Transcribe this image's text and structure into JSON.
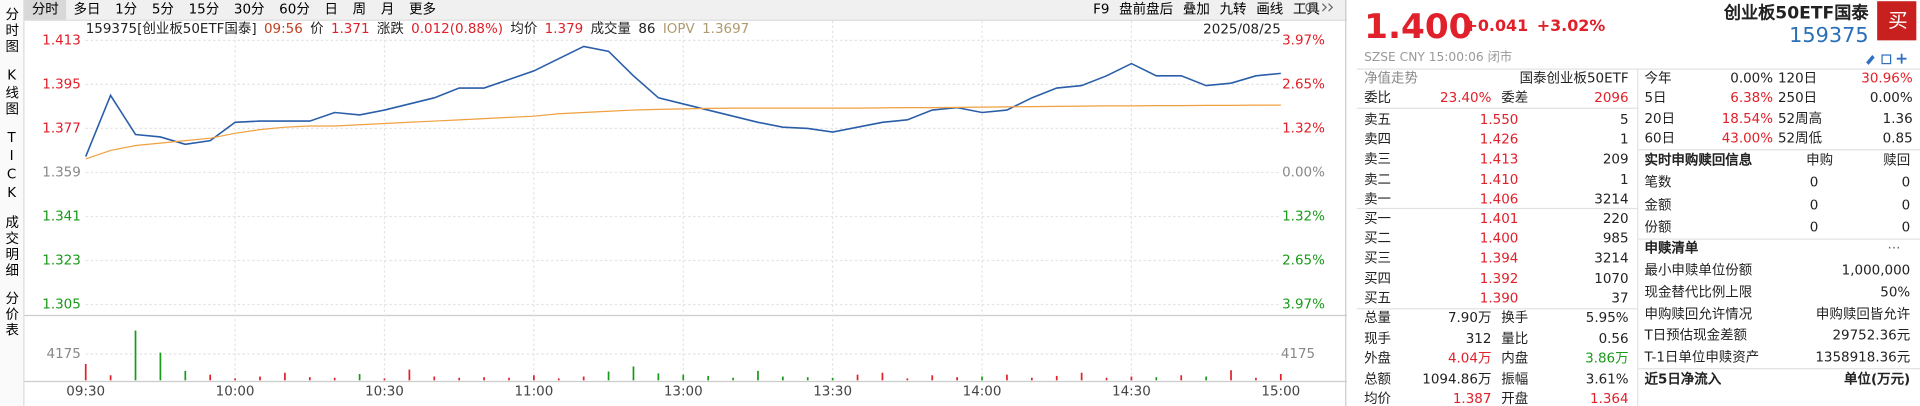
{
  "tabs": [
    "分时",
    "多日",
    "1分",
    "5分",
    "15分",
    "30分",
    "60分",
    "日",
    "周",
    "月",
    "更多"
  ],
  "tools": [
    "F9",
    "盘前盘后",
    "叠加",
    "九转",
    "画线",
    "工具"
  ],
  "nav": [
    "分时图",
    "K线图",
    "TICK",
    "成交明细",
    "分价表"
  ],
  "quote_line": [
    {
      "text": "159375[创业板50ETF国泰]",
      "color": "#222222"
    },
    {
      "text": "09:56",
      "color": "#c04020"
    },
    {
      "text": "价",
      "color": "#222222"
    },
    {
      "text": "1.371",
      "color": "#e0202a"
    },
    {
      "text": "涨跌",
      "color": "#222222"
    },
    {
      "text": "0.012(0.88%)",
      "color": "#e0202a"
    },
    {
      "text": "均价",
      "color": "#222222"
    },
    {
      "text": "1.379",
      "color": "#e0202a"
    },
    {
      "text": "成交量",
      "color": "#222222"
    },
    {
      "text": "86",
      "color": "#222222"
    },
    {
      "text": "IOPV",
      "color": "#b09a70"
    },
    {
      "text": "1.3697",
      "color": "#b09a70"
    }
  ],
  "date": "2025/08/25",
  "chart_data": {
    "type": "line",
    "series": [
      {
        "color": "#2a5ea8",
        "values": [
          1.3655,
          1.3905,
          1.3745,
          1.3735,
          1.3705,
          1.372,
          1.3795,
          1.38,
          1.38,
          1.38,
          1.3835,
          1.3825,
          1.3845,
          1.387,
          1.3895,
          1.3935,
          1.3935,
          1.397,
          1.4005,
          1.4055,
          1.4105,
          1.4085,
          1.3985,
          1.3895,
          1.387,
          1.3845,
          1.382,
          1.3795,
          1.3775,
          1.377,
          1.3755,
          1.3775,
          1.3795,
          1.3805,
          1.3845,
          1.3855,
          1.3835,
          1.3845,
          1.3895,
          1.3935,
          1.3945,
          1.3985,
          1.4035,
          1.3985,
          1.3985,
          1.3945,
          1.3955,
          1.3985,
          1.3995
        ]
      },
      {
        "color": "#f0a040",
        "values": [
          1.3645,
          1.368,
          1.37,
          1.371,
          1.372,
          1.373,
          1.375,
          1.3765,
          1.3775,
          1.378,
          1.378,
          1.3785,
          1.379,
          1.3795,
          1.38,
          1.3805,
          1.381,
          1.3815,
          1.382,
          1.383,
          1.3835,
          1.384,
          1.3845,
          1.3848,
          1.385,
          1.3852,
          1.3853,
          1.3853,
          1.3853,
          1.3853,
          1.3853,
          1.3853,
          1.3854,
          1.3855,
          1.3855,
          1.3856,
          1.3857,
          1.3858,
          1.3859,
          1.386,
          1.3861,
          1.3862,
          1.3862,
          1.3863,
          1.3863,
          1.3864,
          1.3864,
          1.3865,
          1.3865
        ]
      }
    ],
    "ylim": [
      1.305,
      1.413
    ],
    "yticks": [
      1.305,
      1.323,
      1.341,
      1.359,
      1.377,
      1.395,
      1.413
    ],
    "y2lim": [
      -3.97,
      3.97
    ],
    "y2ticks": [
      {
        "value": -3.97,
        "label": "3.97%"
      },
      {
        "value": -2.65,
        "label": "2.65%"
      },
      {
        "value": -1.32,
        "label": "1.32%"
      },
      {
        "value": 0,
        "label": "0.00%"
      },
      {
        "value": 1.32,
        "label": "1.32%"
      },
      {
        "value": 2.65,
        "label": "2.65%"
      },
      {
        "value": 3.97,
        "label": "3.97%"
      }
    ],
    "times": [
      "09:30",
      "10:00",
      "10:30",
      "11:00",
      "13:00",
      "13:30",
      "14:00",
      "14:30",
      "15:00"
    ],
    "volume": {
      "values": [
        2600,
        800,
        7900,
        4400,
        1500,
        900,
        300,
        600,
        1200,
        500,
        400,
        1000,
        300,
        1700,
        600,
        400,
        500,
        400,
        800,
        300,
        600,
        1400,
        2200,
        1100,
        900,
        700,
        400,
        1500,
        600,
        500,
        400,
        900,
        1200,
        300,
        800,
        500,
        600,
        900,
        400,
        700,
        1200,
        400,
        600,
        500,
        800,
        600,
        1600,
        400,
        1000
      ],
      "ylim": [
        0,
        8350
      ],
      "yticks": [
        4175
      ],
      "up_color": "#e0202a",
      "down_color": "#1a9a1a"
    },
    "grid": true
  },
  "header": {
    "price": "1.400",
    "change": "+0.041",
    "pct": "+3.02%",
    "name": "创业板50ETF国泰",
    "code": "159375",
    "buy": "买",
    "status": "SZSE  CNY  15:00:06  闭市"
  },
  "order_book": {
    "nav_label": "净值走势",
    "nav_name": "国泰创业板50ETF",
    "ratio_label": "委比",
    "ratio": "23.40%",
    "diff_label": "委差",
    "diff": "2096",
    "asks": [
      {
        "label": "卖五",
        "price": "1.550",
        "volume": "5"
      },
      {
        "label": "卖四",
        "price": "1.426",
        "volume": "1"
      },
      {
        "label": "卖三",
        "price": "1.413",
        "volume": "209"
      },
      {
        "label": "卖二",
        "price": "1.410",
        "volume": "1"
      },
      {
        "label": "卖一",
        "price": "1.406",
        "volume": "3214"
      }
    ],
    "bids": [
      {
        "label": "买一",
        "price": "1.401",
        "volume": "220"
      },
      {
        "label": "买二",
        "price": "1.400",
        "volume": "985"
      },
      {
        "label": "买三",
        "price": "1.394",
        "volume": "3214"
      },
      {
        "label": "买四",
        "price": "1.392",
        "volume": "1070"
      },
      {
        "label": "买五",
        "price": "1.390",
        "volume": "37"
      }
    ]
  },
  "stats": [
    {
      "label": "总量",
      "value": "7.90万",
      "color": "#222222",
      "label2": "换手",
      "value2": "5.95%",
      "color2": "#222222"
    },
    {
      "label": "现手",
      "value": "312",
      "color": "#222222",
      "label2": "量比",
      "value2": "0.56",
      "color2": "#222222"
    },
    {
      "label": "外盘",
      "value": "4.04万",
      "color": "#e0202a",
      "label2": "内盘",
      "value2": "3.86万",
      "color2": "#1a9a1a"
    },
    {
      "label": "总额",
      "value": "1094.86万",
      "color": "#222222",
      "label2": "振幅",
      "value2": "3.61%",
      "color2": "#222222"
    },
    {
      "label": "均价",
      "value": "1.387",
      "color": "#e0202a",
      "label2": "开盘",
      "value2": "1.364",
      "color2": "#e0202a"
    }
  ],
  "returns": [
    {
      "label": "今年",
      "value": "0.00%",
      "color": "#222222",
      "label2": "120日",
      "value2": "30.96%",
      "color2": "#e0202a"
    },
    {
      "label": "5日",
      "value": "6.38%",
      "color": "#e0202a",
      "label2": "250日",
      "value2": "0.00%",
      "color2": "#222222"
    },
    {
      "label": "20日",
      "value": "18.54%",
      "color": "#e0202a",
      "label2": "52周高",
      "value2": "1.36",
      "color2": "#222222"
    },
    {
      "label": "60日",
      "value": "43.00%",
      "color": "#e0202a",
      "label2": "52周低",
      "value2": "0.85",
      "color2": "#222222"
    }
  ],
  "realtime": {
    "title": "实时申购赎回信息",
    "col1": "申购",
    "col2": "赎回",
    "rows": [
      {
        "label": "笔数",
        "v1": "0",
        "v2": "0"
      },
      {
        "label": "金额",
        "v1": "0",
        "v2": "0"
      },
      {
        "label": "份额",
        "v1": "0",
        "v2": "0"
      }
    ]
  },
  "list": {
    "title": "申赎清单",
    "more": "···",
    "rows": [
      {
        "label": "最小申赎单位份额",
        "value": "1,000,000"
      },
      {
        "label": "现金替代比例上限",
        "value": "50%"
      },
      {
        "label": "申购赎回允许情况",
        "value": "申购赎回皆允许"
      },
      {
        "label": "T日预估现金差额",
        "value": "29752.36元"
      },
      {
        "label": "T-1日单位申赎资产",
        "value": "1358918.36元"
      }
    ]
  },
  "flow": {
    "title": "近5日净流入",
    "unit": "单位(万元)"
  }
}
